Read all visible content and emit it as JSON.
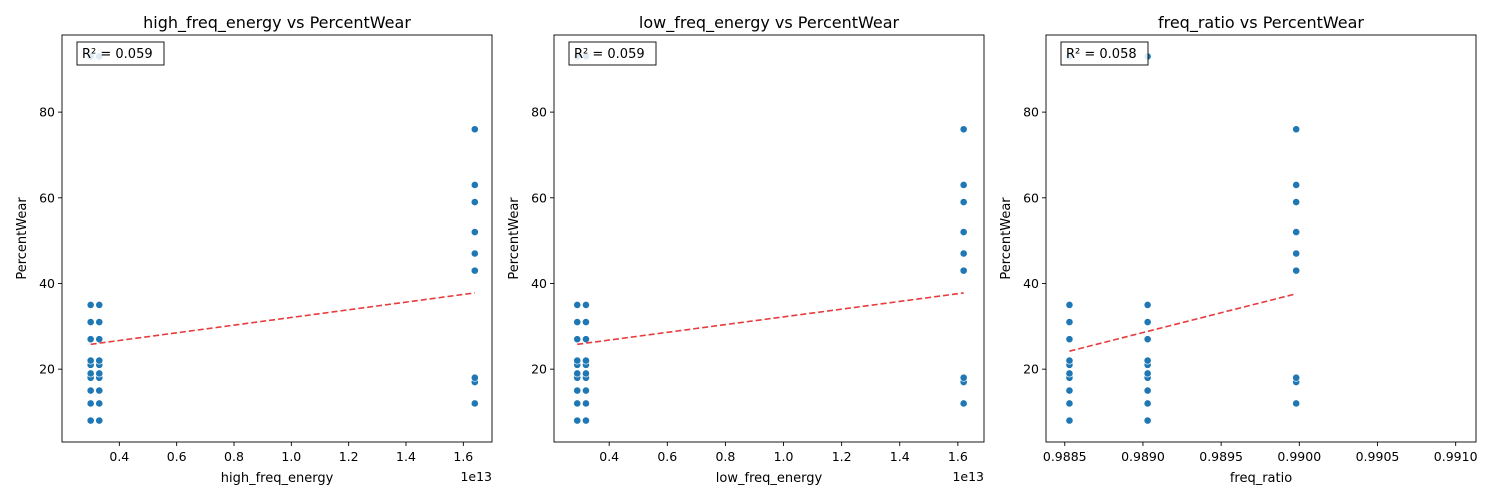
{
  "chart_data": [
    {
      "type": "scatter",
      "title": "high_freq_energy vs PercentWear",
      "xlabel": "high_freq_energy",
      "ylabel": "PercentWear",
      "x_offset_label": "1e13",
      "annotation": "R² = 0.059",
      "xlim": [
        0.2,
        1.7
      ],
      "ylim": [
        3,
        98
      ],
      "x_ticks": [
        0.4,
        0.6,
        0.8,
        1.0,
        1.2,
        1.4,
        1.6
      ],
      "x_tick_labels": [
        "0.4",
        "0.6",
        "0.8",
        "1.0",
        "1.2",
        "1.4",
        "1.6"
      ],
      "y_ticks": [
        20,
        40,
        60,
        80
      ],
      "y_tick_labels": [
        "20",
        "40",
        "60",
        "80"
      ],
      "point_color": "#1f77b4",
      "trend_color": "#e41a1c",
      "points": [
        {
          "x": 0.3,
          "y": 8
        },
        {
          "x": 0.3,
          "y": 12
        },
        {
          "x": 0.3,
          "y": 15
        },
        {
          "x": 0.3,
          "y": 18
        },
        {
          "x": 0.3,
          "y": 19
        },
        {
          "x": 0.3,
          "y": 21
        },
        {
          "x": 0.3,
          "y": 22
        },
        {
          "x": 0.3,
          "y": 27
        },
        {
          "x": 0.3,
          "y": 31
        },
        {
          "x": 0.3,
          "y": 35
        },
        {
          "x": 0.3,
          "y": 93
        },
        {
          "x": 0.33,
          "y": 8
        },
        {
          "x": 0.33,
          "y": 12
        },
        {
          "x": 0.33,
          "y": 15
        },
        {
          "x": 0.33,
          "y": 18
        },
        {
          "x": 0.33,
          "y": 19
        },
        {
          "x": 0.33,
          "y": 21
        },
        {
          "x": 0.33,
          "y": 22
        },
        {
          "x": 0.33,
          "y": 27
        },
        {
          "x": 0.33,
          "y": 31
        },
        {
          "x": 0.33,
          "y": 35
        },
        {
          "x": 0.33,
          "y": 93
        },
        {
          "x": 1.64,
          "y": 12
        },
        {
          "x": 1.64,
          "y": 17
        },
        {
          "x": 1.64,
          "y": 18
        },
        {
          "x": 1.64,
          "y": 43
        },
        {
          "x": 1.64,
          "y": 47
        },
        {
          "x": 1.64,
          "y": 52
        },
        {
          "x": 1.64,
          "y": 59
        },
        {
          "x": 1.64,
          "y": 63
        },
        {
          "x": 1.64,
          "y": 76
        }
      ],
      "trend_line": {
        "x": [
          0.3,
          1.64
        ],
        "y": [
          25.8,
          37.8
        ]
      }
    },
    {
      "type": "scatter",
      "title": "low_freq_energy vs PercentWear",
      "xlabel": "low_freq_energy",
      "ylabel": "PercentWear",
      "x_offset_label": "1e13",
      "annotation": "R² = 0.059",
      "xlim": [
        0.21,
        1.69
      ],
      "ylim": [
        3,
        98
      ],
      "x_ticks": [
        0.4,
        0.6,
        0.8,
        1.0,
        1.2,
        1.4,
        1.6
      ],
      "x_tick_labels": [
        "0.4",
        "0.6",
        "0.8",
        "1.0",
        "1.2",
        "1.4",
        "1.6"
      ],
      "y_ticks": [
        20,
        40,
        60,
        80
      ],
      "y_tick_labels": [
        "20",
        "40",
        "60",
        "80"
      ],
      "point_color": "#1f77b4",
      "trend_color": "#e41a1c",
      "points": [
        {
          "x": 0.29,
          "y": 8
        },
        {
          "x": 0.29,
          "y": 12
        },
        {
          "x": 0.29,
          "y": 15
        },
        {
          "x": 0.29,
          "y": 18
        },
        {
          "x": 0.29,
          "y": 19
        },
        {
          "x": 0.29,
          "y": 21
        },
        {
          "x": 0.29,
          "y": 22
        },
        {
          "x": 0.29,
          "y": 27
        },
        {
          "x": 0.29,
          "y": 31
        },
        {
          "x": 0.29,
          "y": 35
        },
        {
          "x": 0.29,
          "y": 93
        },
        {
          "x": 0.32,
          "y": 8
        },
        {
          "x": 0.32,
          "y": 12
        },
        {
          "x": 0.32,
          "y": 15
        },
        {
          "x": 0.32,
          "y": 18
        },
        {
          "x": 0.32,
          "y": 19
        },
        {
          "x": 0.32,
          "y": 21
        },
        {
          "x": 0.32,
          "y": 22
        },
        {
          "x": 0.32,
          "y": 27
        },
        {
          "x": 0.32,
          "y": 31
        },
        {
          "x": 0.32,
          "y": 35
        },
        {
          "x": 0.32,
          "y": 93
        },
        {
          "x": 1.62,
          "y": 12
        },
        {
          "x": 1.62,
          "y": 17
        },
        {
          "x": 1.62,
          "y": 18
        },
        {
          "x": 1.62,
          "y": 43
        },
        {
          "x": 1.62,
          "y": 47
        },
        {
          "x": 1.62,
          "y": 52
        },
        {
          "x": 1.62,
          "y": 59
        },
        {
          "x": 1.62,
          "y": 63
        },
        {
          "x": 1.62,
          "y": 76
        }
      ],
      "trend_line": {
        "x": [
          0.29,
          1.62
        ],
        "y": [
          25.8,
          37.8
        ]
      }
    },
    {
      "type": "scatter",
      "title": "freq_ratio vs PercentWear",
      "xlabel": "freq_ratio",
      "ylabel": "PercentWear",
      "x_offset_label": "",
      "annotation": "R² = 0.058",
      "xlim": [
        0.98838,
        0.99113
      ],
      "ylim": [
        3,
        98
      ],
      "x_ticks": [
        0.9885,
        0.989,
        0.9895,
        0.99,
        0.9905,
        0.991
      ],
      "x_tick_labels": [
        "0.9885",
        "0.9890",
        "0.9895",
        "0.9900",
        "0.9905",
        "0.9910"
      ],
      "y_ticks": [
        20,
        40,
        60,
        80
      ],
      "y_tick_labels": [
        "20",
        "40",
        "60",
        "80"
      ],
      "point_color": "#1f77b4",
      "trend_color": "#e41a1c",
      "points": [
        {
          "x": 0.98853,
          "y": 8
        },
        {
          "x": 0.98853,
          "y": 12
        },
        {
          "x": 0.98853,
          "y": 15
        },
        {
          "x": 0.98853,
          "y": 18
        },
        {
          "x": 0.98853,
          "y": 19
        },
        {
          "x": 0.98853,
          "y": 21
        },
        {
          "x": 0.98853,
          "y": 22
        },
        {
          "x": 0.98853,
          "y": 27
        },
        {
          "x": 0.98853,
          "y": 31
        },
        {
          "x": 0.98853,
          "y": 35
        },
        {
          "x": 0.98853,
          "y": 93
        },
        {
          "x": 0.98903,
          "y": 8
        },
        {
          "x": 0.98903,
          "y": 12
        },
        {
          "x": 0.98903,
          "y": 15
        },
        {
          "x": 0.98903,
          "y": 18
        },
        {
          "x": 0.98903,
          "y": 19
        },
        {
          "x": 0.98903,
          "y": 21
        },
        {
          "x": 0.98903,
          "y": 22
        },
        {
          "x": 0.98903,
          "y": 27
        },
        {
          "x": 0.98903,
          "y": 31
        },
        {
          "x": 0.98903,
          "y": 35
        },
        {
          "x": 0.98903,
          "y": 93
        },
        {
          "x": 0.98998,
          "y": 12
        },
        {
          "x": 0.98998,
          "y": 17
        },
        {
          "x": 0.98998,
          "y": 18
        },
        {
          "x": 0.98998,
          "y": 43
        },
        {
          "x": 0.98998,
          "y": 47
        },
        {
          "x": 0.98998,
          "y": 52
        },
        {
          "x": 0.98998,
          "y": 59
        },
        {
          "x": 0.98998,
          "y": 63
        },
        {
          "x": 0.98998,
          "y": 76
        }
      ],
      "trend_line": {
        "x": [
          0.98853,
          0.98998
        ],
        "y": [
          24.2,
          37.6
        ]
      }
    }
  ]
}
